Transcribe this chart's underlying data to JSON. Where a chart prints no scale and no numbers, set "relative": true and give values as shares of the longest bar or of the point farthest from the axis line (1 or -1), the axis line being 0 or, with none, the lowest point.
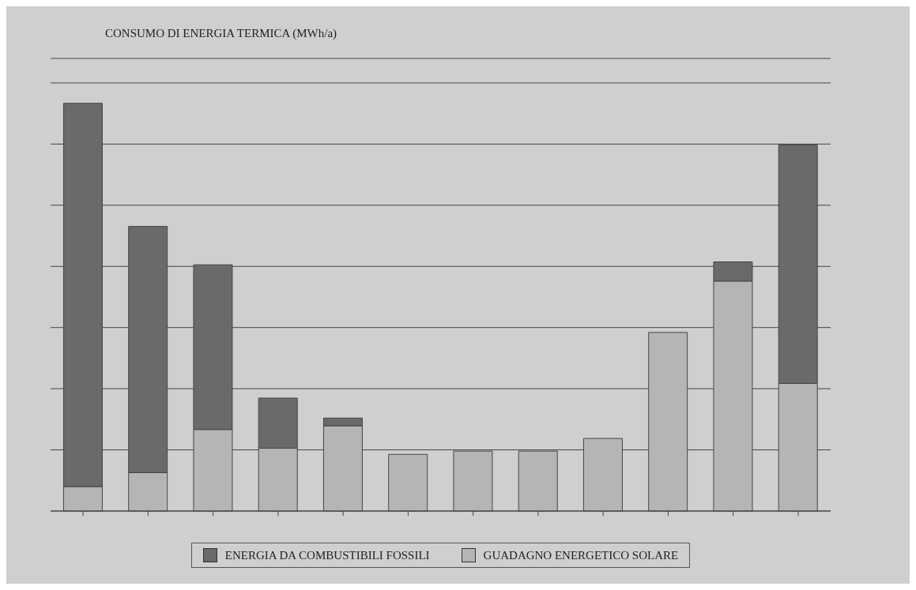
{
  "chart_data": {
    "type": "bar",
    "title": "CONSUMO DI ENERGIA TERMICA (MWh/a)",
    "relative": true,
    "stacked": true,
    "grid": "y",
    "legend": "bottom",
    "categories": [
      null,
      null,
      null,
      null,
      null,
      null,
      null,
      null,
      null,
      null,
      null,
      null
    ],
    "series": [
      {
        "name": "GUADAGNO ENERGETICO SOLARE",
        "color": "#b5b5b5",
        "values": [
          0.06,
          0.094,
          0.2,
          0.154,
          0.209,
          0.139,
          0.147,
          0.147,
          0.178,
          0.438,
          0.564,
          0.313
        ]
      },
      {
        "name": "ENERGIA DA COMBUSTIBILI FOSSILI",
        "color": "#6a6a6a",
        "values": [
          0.94,
          0.604,
          0.404,
          0.123,
          0.019,
          0,
          0,
          0,
          0,
          0,
          0.047,
          0.585
        ]
      }
    ]
  }
}
